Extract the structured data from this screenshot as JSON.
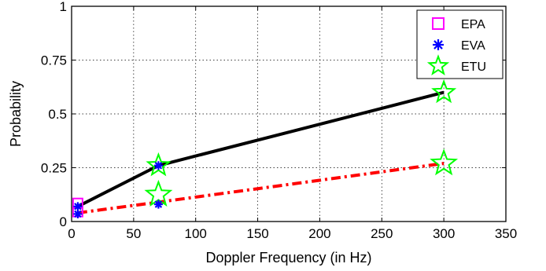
{
  "chart_data": {
    "type": "line",
    "title": "",
    "xlabel": "Doppler Frequency (in Hz)",
    "ylabel": "Probability",
    "xlim": [
      0,
      350
    ],
    "ylim": [
      0,
      1
    ],
    "x_ticks": [
      {
        "value": 0,
        "label": "0"
      },
      {
        "value": 50,
        "label": "50"
      },
      {
        "value": 100,
        "label": "100"
      },
      {
        "value": 150,
        "label": "150"
      },
      {
        "value": 200,
        "label": "200"
      },
      {
        "value": 250,
        "label": "250"
      },
      {
        "value": 300,
        "label": "300"
      },
      {
        "value": 350,
        "label": "350"
      }
    ],
    "y_ticks": [
      {
        "value": 0,
        "label": "0"
      },
      {
        "value": 0.25,
        "label": "0.25"
      },
      {
        "value": 0.5,
        "label": "0.5"
      },
      {
        "value": 0.75,
        "label": "0.75"
      },
      {
        "value": 1,
        "label": "1"
      }
    ],
    "grid": true,
    "legend_position": "top-right",
    "lines": [
      {
        "x": [
          5,
          70,
          300
        ],
        "y": [
          0.07,
          0.26,
          0.6
        ],
        "color": "#000000",
        "style": "solid"
      },
      {
        "x": [
          5,
          70,
          300
        ],
        "y": [
          0.04,
          0.09,
          0.27
        ],
        "color": "#ff0000",
        "style": "dashdot"
      }
    ],
    "series": [
      {
        "name": "EPA",
        "marker": "square",
        "color": "#ff00ff",
        "points": [
          {
            "x": 5,
            "y": 0.085,
            "size": 12
          },
          {
            "x": 5,
            "y": 0.045,
            "size": 12
          }
        ]
      },
      {
        "name": "EVA",
        "marker": "asterisk",
        "color": "#0000ff",
        "points": [
          {
            "x": 5,
            "y": 0.07,
            "size": 11
          },
          {
            "x": 5,
            "y": 0.035,
            "size": 11
          },
          {
            "x": 70,
            "y": 0.26,
            "size": 11
          },
          {
            "x": 70,
            "y": 0.08,
            "size": 11
          }
        ]
      },
      {
        "name": "ETU",
        "marker": "star",
        "color": "#00ff00",
        "points": [
          {
            "x": 70,
            "y": 0.26,
            "size": 14
          },
          {
            "x": 70,
            "y": 0.125,
            "size": 16
          },
          {
            "x": 300,
            "y": 0.6,
            "size": 14
          },
          {
            "x": 300,
            "y": 0.27,
            "size": 16
          }
        ]
      }
    ]
  }
}
